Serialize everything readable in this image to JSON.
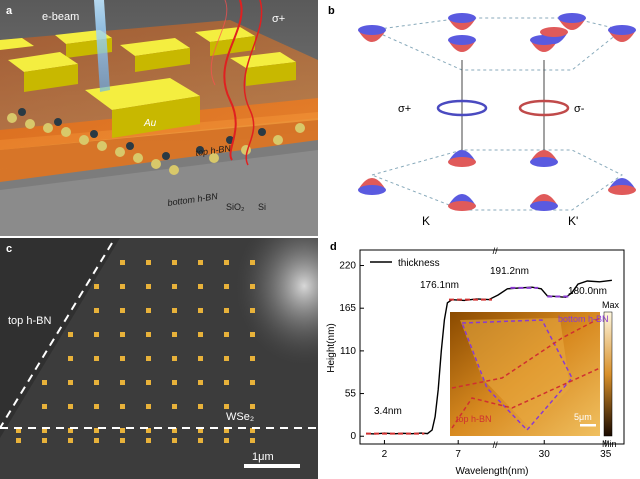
{
  "panel_a": {
    "label": "a",
    "ebeam": "e-beam",
    "sigma": "σ+",
    "au": "Au",
    "top_hbn": "top h-BN",
    "bottom_hbn": "bottom h-BN",
    "sio2": "SiO₂",
    "si": "Si"
  },
  "panel_b": {
    "label": "b",
    "sigma_plus": "σ+",
    "sigma_minus": "σ-",
    "k": "K",
    "kprime": "K'"
  },
  "panel_c": {
    "label": "c",
    "top_hbn": "top h-BN",
    "wse2": "WSe₂",
    "scalebar": "1μm"
  },
  "panel_d": {
    "label": "d",
    "legend": "thickness",
    "ylabel": "Height(nm)",
    "xlabel": "Wavelength(nm)",
    "annotations": [
      "3.4nm",
      "176.1nm",
      "191.2nm",
      "180.0nm"
    ],
    "inset": {
      "bottom_hbn": "bottom h-BN",
      "top_hbn": "top h-BN",
      "scalebar": "5μm",
      "max": "Max",
      "min": "Min"
    }
  },
  "chart_data": {
    "type": "line",
    "xlabel": "Wavelength(nm)",
    "ylabel": "Height(nm)",
    "xticks": [
      "2",
      "7",
      "30",
      "35"
    ],
    "yticks": [
      0,
      55,
      110,
      165,
      220
    ],
    "ylim": [
      -10,
      240
    ],
    "legend": "top-left",
    "series": [
      {
        "name": "thickness",
        "points": [
          [
            0.0,
            3.4
          ],
          [
            0.3,
            3.0
          ],
          [
            0.6,
            4.1
          ],
          [
            0.9,
            3.2
          ],
          [
            1.2,
            3.8
          ],
          [
            1.5,
            3.3
          ],
          [
            1.8,
            4.0
          ],
          [
            2.0,
            3.4
          ],
          [
            2.15,
            8
          ],
          [
            2.25,
            25
          ],
          [
            2.35,
            60
          ],
          [
            2.45,
            110
          ],
          [
            2.55,
            150
          ],
          [
            2.65,
            172
          ],
          [
            2.8,
            176
          ],
          [
            3.2,
            175
          ],
          [
            3.6,
            177
          ],
          [
            4.0,
            176.1
          ],
          [
            4.3,
            182
          ],
          [
            4.6,
            190
          ],
          [
            5.0,
            191.2
          ],
          [
            5.4,
            192
          ],
          [
            5.7,
            190
          ],
          [
            5.9,
            181
          ],
          [
            6.2,
            180
          ],
          [
            6.5,
            179
          ],
          [
            6.7,
            185
          ],
          [
            6.9,
            196
          ],
          [
            7.2,
            200
          ],
          [
            7.6,
            199
          ],
          [
            8.0,
            201
          ]
        ]
      }
    ],
    "note": "x values in local axis units; axis is broken with tick labels 2, 7, 30, 35"
  },
  "colors": {
    "au": "#e8e000",
    "orange": "#e8741a",
    "valley_red": "#e05a5a",
    "valley_blue": "#5a5ae0",
    "scan_dot": "#e8b23a",
    "dash_red": "#d03030",
    "dash_purple": "#8a3ad0"
  }
}
